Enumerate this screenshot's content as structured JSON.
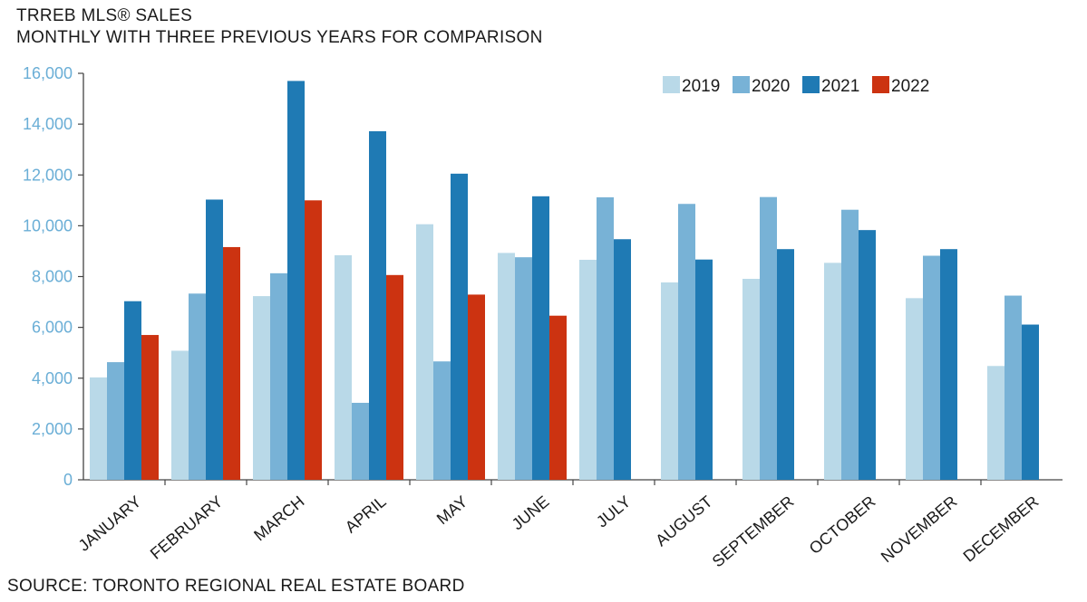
{
  "header": {
    "title": "TRREB MLS® SALES",
    "subtitle": "MONTHLY WITH THREE PREVIOUS YEARS FOR COMPARISON"
  },
  "footer": {
    "source": "SOURCE: TORONTO REGIONAL REAL ESTATE BOARD"
  },
  "chart_data": {
    "type": "bar",
    "categories": [
      "JANUARY",
      "FEBRUARY",
      "MARCH",
      "APRIL",
      "MAY",
      "JUNE",
      "JULY",
      "AUGUST",
      "SEPTEMBER",
      "OCTOBER",
      "NOVEMBER",
      "DECEMBER"
    ],
    "series": [
      {
        "name": "2019",
        "color": "#b9d9e8",
        "values": [
          4030,
          5080,
          7230,
          8840,
          10060,
          8930,
          8660,
          7770,
          7910,
          8540,
          7150,
          4480
        ]
      },
      {
        "name": "2020",
        "color": "#78b2d6",
        "values": [
          4630,
          7330,
          8130,
          3030,
          4660,
          8760,
          11120,
          10860,
          11130,
          10630,
          8820,
          7250
        ]
      },
      {
        "name": "2021",
        "color": "#1f7ab4",
        "values": [
          7030,
          11030,
          15700,
          13720,
          12050,
          11160,
          9470,
          8670,
          9080,
          9830,
          9080,
          6110
        ]
      },
      {
        "name": "2022",
        "color": "#cc3311",
        "values": [
          5700,
          9160,
          11000,
          8060,
          7290,
          6460,
          null,
          null,
          null,
          null,
          null,
          null
        ]
      }
    ],
    "y_ticks": [
      "0",
      "2,000",
      "4,000",
      "6,000",
      "8,000",
      "10,000",
      "12,000",
      "14,000",
      "16,000"
    ],
    "ylim": [
      0,
      16000
    ],
    "legend_position": "top-right",
    "grid": false
  }
}
